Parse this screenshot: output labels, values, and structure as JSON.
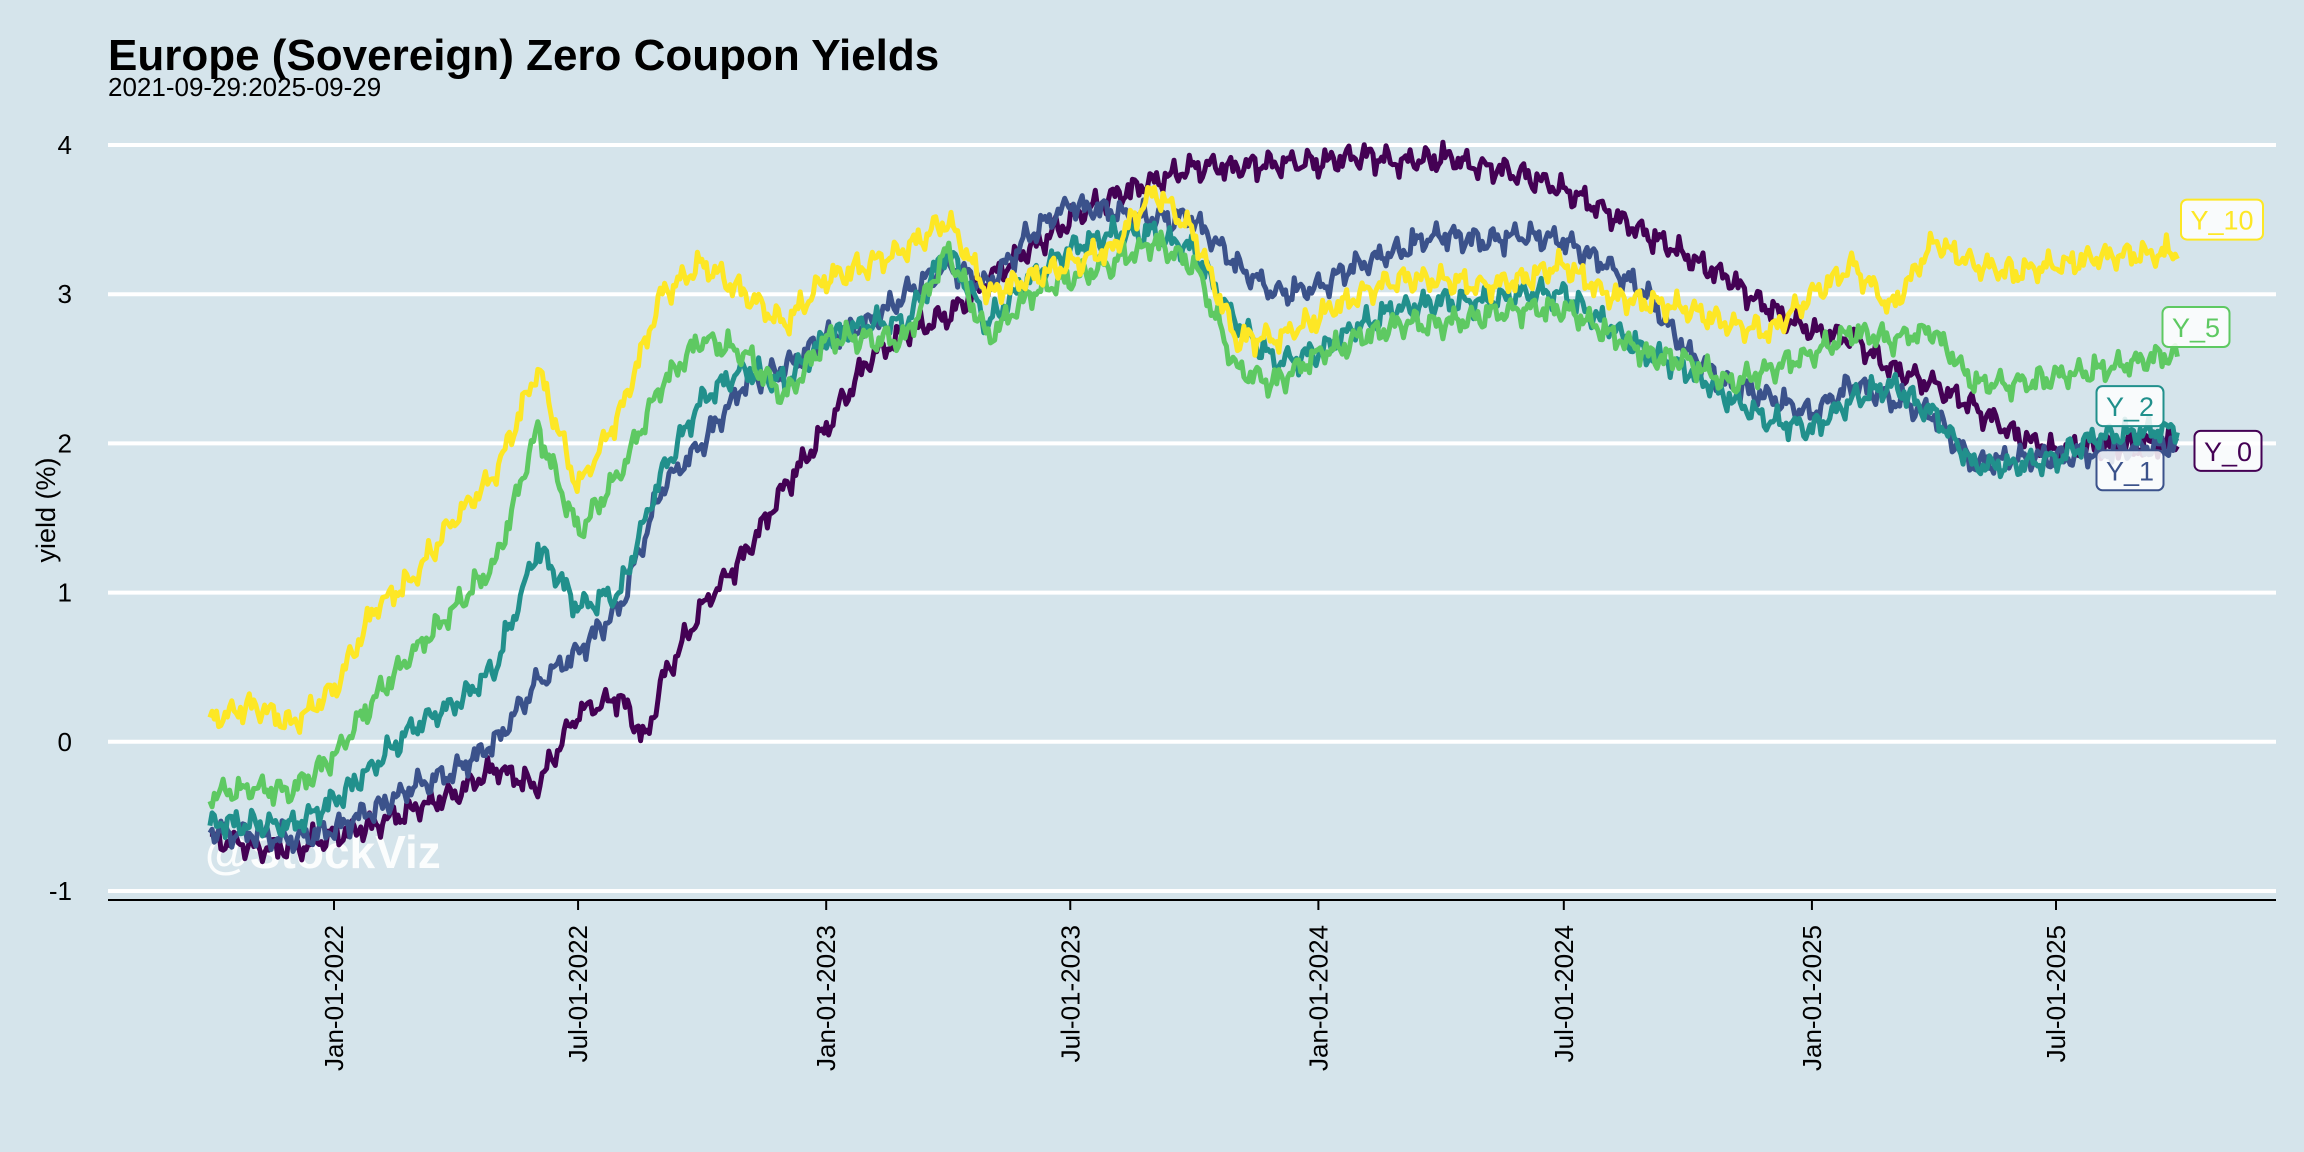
{
  "chart_data": {
    "type": "line",
    "title": "Europe (Sovereign) Zero Coupon Yields",
    "subtitle": "2021-09-29:2025-09-29",
    "xlabel": "",
    "ylabel": "yield (%)",
    "ylim": [
      -1,
      4
    ],
    "yticks": [
      -1,
      0,
      1,
      2,
      3,
      4
    ],
    "xlim": [
      "2021-09-29",
      "2025-09-29"
    ],
    "xticks": [
      "2022-01-01",
      "2022-07-01",
      "2023-01-01",
      "2023-07-01",
      "2024-01-01",
      "2024-07-01",
      "2025-01-01",
      "2025-07-01"
    ],
    "xtick_labels": [
      "Jan-01-2022",
      "Jul-01-2022",
      "Jan-01-2023",
      "Jul-01-2023",
      "Jan-01-2024",
      "Jul-01-2024",
      "Jan-01-2025",
      "Jul-01-2025"
    ],
    "grid": "horizontal",
    "watermark": "@StockViz",
    "series": [
      {
        "name": "Y_0",
        "color": "#440154",
        "x": [
          "2021-10-01",
          "2021-11-01",
          "2021-12-01",
          "2022-01-01",
          "2022-02-01",
          "2022-03-01",
          "2022-04-01",
          "2022-05-01",
          "2022-06-01",
          "2022-07-01",
          "2022-08-01",
          "2022-08-20",
          "2022-09-01",
          "2022-10-01",
          "2022-11-01",
          "2022-12-01",
          "2023-01-01",
          "2023-02-01",
          "2023-03-01",
          "2023-04-01",
          "2023-05-01",
          "2023-06-01",
          "2023-07-01",
          "2023-08-01",
          "2023-09-01",
          "2023-10-01",
          "2023-11-01",
          "2023-12-01",
          "2024-01-01",
          "2024-02-01",
          "2024-03-01",
          "2024-04-01",
          "2024-05-01",
          "2024-06-01",
          "2024-07-01",
          "2024-08-01",
          "2024-09-01",
          "2024-10-01",
          "2024-11-01",
          "2024-12-01",
          "2025-01-01",
          "2025-02-01",
          "2025-03-01",
          "2025-04-01",
          "2025-05-01",
          "2025-06-01",
          "2025-07-01",
          "2025-08-01",
          "2025-09-29"
        ],
        "y": [
          -0.65,
          -0.7,
          -0.72,
          -0.62,
          -0.55,
          -0.45,
          -0.35,
          -0.18,
          -0.3,
          0.2,
          0.3,
          0.0,
          0.4,
          0.9,
          1.25,
          1.7,
          2.1,
          2.55,
          2.75,
          2.85,
          3.1,
          3.3,
          3.5,
          3.65,
          3.75,
          3.85,
          3.85,
          3.88,
          3.88,
          3.93,
          3.88,
          3.92,
          3.85,
          3.8,
          3.7,
          3.55,
          3.4,
          3.25,
          3.1,
          2.9,
          2.75,
          2.7,
          2.5,
          2.4,
          2.25,
          2.05,
          1.95,
          1.98,
          2.0
        ]
      },
      {
        "name": "Y_1",
        "color": "#3b528b",
        "x": [
          "2021-10-01",
          "2021-11-01",
          "2021-12-01",
          "2022-01-01",
          "2022-02-01",
          "2022-03-01",
          "2022-04-01",
          "2022-05-01",
          "2022-06-01",
          "2022-07-01",
          "2022-08-01",
          "2022-09-01",
          "2022-10-01",
          "2022-11-01",
          "2022-12-01",
          "2023-01-01",
          "2023-02-01",
          "2023-03-01",
          "2023-04-01",
          "2023-05-01",
          "2023-06-01",
          "2023-07-01",
          "2023-08-01",
          "2023-09-01",
          "2023-10-01",
          "2023-11-01",
          "2023-12-01",
          "2024-01-01",
          "2024-02-01",
          "2024-03-01",
          "2024-04-01",
          "2024-05-01",
          "2024-06-01",
          "2024-07-01",
          "2024-08-01",
          "2024-09-01",
          "2024-10-01",
          "2024-11-01",
          "2024-12-01",
          "2025-01-01",
          "2025-02-01",
          "2025-03-01",
          "2025-04-01",
          "2025-05-01",
          "2025-06-01",
          "2025-07-01",
          "2025-08-01",
          "2025-09-29"
        ],
        "y": [
          -0.6,
          -0.62,
          -0.65,
          -0.58,
          -0.45,
          -0.3,
          -0.2,
          0.0,
          0.4,
          0.6,
          0.9,
          1.7,
          2.0,
          2.4,
          2.5,
          2.7,
          2.8,
          3.0,
          3.2,
          3.05,
          3.4,
          3.6,
          3.55,
          3.5,
          3.5,
          3.2,
          3.0,
          3.05,
          3.2,
          3.3,
          3.4,
          3.35,
          3.4,
          3.35,
          3.2,
          3.0,
          2.6,
          2.4,
          2.3,
          2.2,
          2.4,
          2.3,
          2.2,
          1.85,
          1.9,
          1.9,
          1.95,
          2.0
        ]
      },
      {
        "name": "Y_2",
        "color": "#21908c",
        "x": [
          "2021-10-01",
          "2021-11-01",
          "2021-12-01",
          "2022-01-01",
          "2022-02-01",
          "2022-03-01",
          "2022-04-01",
          "2022-05-01",
          "2022-06-01",
          "2022-07-01",
          "2022-08-01",
          "2022-09-01",
          "2022-10-01",
          "2022-11-01",
          "2022-12-01",
          "2023-01-01",
          "2023-02-01",
          "2023-03-01",
          "2023-04-01",
          "2023-05-01",
          "2023-06-01",
          "2023-07-01",
          "2023-08-01",
          "2023-09-01",
          "2023-10-01",
          "2023-11-01",
          "2023-12-01",
          "2024-01-01",
          "2024-02-01",
          "2024-03-01",
          "2024-04-01",
          "2024-05-01",
          "2024-06-01",
          "2024-07-01",
          "2024-08-01",
          "2024-09-01",
          "2024-10-01",
          "2024-11-01",
          "2024-12-01",
          "2025-01-01",
          "2025-02-01",
          "2025-03-01",
          "2025-04-01",
          "2025-05-01",
          "2025-06-01",
          "2025-07-01",
          "2025-08-01",
          "2025-09-29"
        ],
        "y": [
          -0.55,
          -0.55,
          -0.55,
          -0.4,
          -0.15,
          0.1,
          0.25,
          0.5,
          1.3,
          0.9,
          1.0,
          1.8,
          2.3,
          2.5,
          2.4,
          2.7,
          2.8,
          2.8,
          3.3,
          2.8,
          3.1,
          3.3,
          3.4,
          3.4,
          3.3,
          2.8,
          2.55,
          2.6,
          2.8,
          2.9,
          2.95,
          2.95,
          3.0,
          3.0,
          2.8,
          2.6,
          2.5,
          2.3,
          2.15,
          2.1,
          2.3,
          2.4,
          2.2,
          1.85,
          1.85,
          1.9,
          2.05,
          2.1
        ]
      },
      {
        "name": "Y_5",
        "color": "#5ec962",
        "x": [
          "2021-10-01",
          "2021-11-01",
          "2021-12-01",
          "2022-01-01",
          "2022-02-01",
          "2022-03-01",
          "2022-04-01",
          "2022-05-01",
          "2022-06-01",
          "2022-07-01",
          "2022-08-01",
          "2022-09-01",
          "2022-10-01",
          "2022-11-01",
          "2022-12-01",
          "2023-01-01",
          "2023-02-01",
          "2023-03-01",
          "2023-04-01",
          "2023-05-01",
          "2023-06-01",
          "2023-07-01",
          "2023-08-01",
          "2023-09-01",
          "2023-10-01",
          "2023-11-01",
          "2023-12-01",
          "2024-01-01",
          "2024-02-01",
          "2024-03-01",
          "2024-04-01",
          "2024-05-01",
          "2024-06-01",
          "2024-07-01",
          "2024-08-01",
          "2024-09-01",
          "2024-10-01",
          "2024-11-01",
          "2024-12-01",
          "2025-01-01",
          "2025-02-01",
          "2025-03-01",
          "2025-04-01",
          "2025-05-01",
          "2025-06-01",
          "2025-07-01",
          "2025-08-01",
          "2025-09-29"
        ],
        "y": [
          -0.35,
          -0.3,
          -0.33,
          -0.1,
          0.3,
          0.6,
          0.9,
          1.2,
          2.1,
          1.4,
          1.8,
          2.4,
          2.7,
          2.6,
          2.3,
          2.7,
          2.7,
          2.7,
          3.3,
          2.7,
          3.0,
          3.1,
          3.2,
          3.35,
          3.2,
          2.5,
          2.4,
          2.6,
          2.7,
          2.8,
          2.8,
          2.85,
          2.9,
          2.9,
          2.75,
          2.6,
          2.55,
          2.4,
          2.5,
          2.6,
          2.75,
          2.7,
          2.75,
          2.4,
          2.4,
          2.45,
          2.5,
          2.6
        ]
      },
      {
        "name": "Y_10",
        "color": "#fde725",
        "x": [
          "2021-10-01",
          "2021-11-01",
          "2021-12-01",
          "2022-01-01",
          "2022-02-01",
          "2022-03-01",
          "2022-04-01",
          "2022-05-01",
          "2022-06-01",
          "2022-07-01",
          "2022-08-01",
          "2022-09-01",
          "2022-10-01",
          "2022-11-01",
          "2022-12-01",
          "2023-01-01",
          "2023-02-01",
          "2023-03-01",
          "2023-04-01",
          "2023-05-01",
          "2023-06-01",
          "2023-07-01",
          "2023-08-01",
          "2023-09-01",
          "2023-10-01",
          "2023-11-01",
          "2023-12-01",
          "2024-01-01",
          "2024-02-01",
          "2024-03-01",
          "2024-04-01",
          "2024-05-01",
          "2024-06-01",
          "2024-07-01",
          "2024-08-01",
          "2024-09-01",
          "2024-10-01",
          "2024-11-01",
          "2024-12-01",
          "2025-01-01",
          "2025-02-01",
          "2025-03-01",
          "2025-04-01",
          "2025-05-01",
          "2025-06-01",
          "2025-07-01",
          "2025-08-01",
          "2025-09-29"
        ],
        "y": [
          0.15,
          0.25,
          0.12,
          0.35,
          0.9,
          1.1,
          1.5,
          1.8,
          2.5,
          1.7,
          2.2,
          3.0,
          3.2,
          3.0,
          2.8,
          3.1,
          3.2,
          3.3,
          3.5,
          3.0,
          3.1,
          3.2,
          3.3,
          3.7,
          3.4,
          2.7,
          2.7,
          2.85,
          3.0,
          3.1,
          3.1,
          3.05,
          3.1,
          3.2,
          3.0,
          2.95,
          2.9,
          2.8,
          2.75,
          3.0,
          3.2,
          2.9,
          3.35,
          3.2,
          3.15,
          3.2,
          3.25,
          3.28
        ]
      }
    ]
  }
}
